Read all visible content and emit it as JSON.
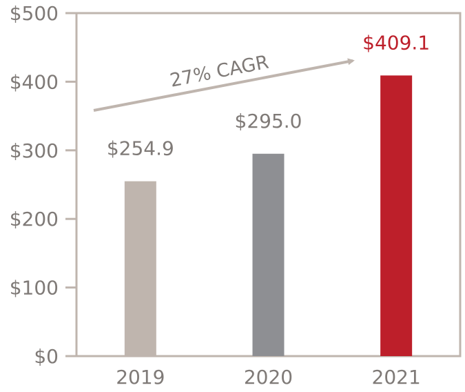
{
  "chart_data": {
    "type": "bar",
    "categories": [
      "2019",
      "2020",
      "2021"
    ],
    "values": [
      254.9,
      295.0,
      409.1
    ],
    "value_labels": [
      "$254.9",
      "$295.0",
      "$409.1"
    ],
    "bar_colors": [
      "#bfb5ae",
      "#8e8f93",
      "#bd1f2a"
    ],
    "label_colors": [
      "#7f7a77",
      "#7f7a77",
      "#bd1f2a"
    ],
    "ylim": [
      0,
      500
    ],
    "yticks": [
      0,
      100,
      200,
      300,
      400,
      500
    ],
    "ytick_labels": [
      "$0",
      "$100",
      "$200",
      "$300",
      "$400",
      "$500"
    ],
    "annotation": "27% CAGR",
    "title": "",
    "xlabel": "",
    "ylabel": "",
    "grid": false,
    "frame_color": "#bfb5ae",
    "arrow_color": "#bfb5ae"
  }
}
